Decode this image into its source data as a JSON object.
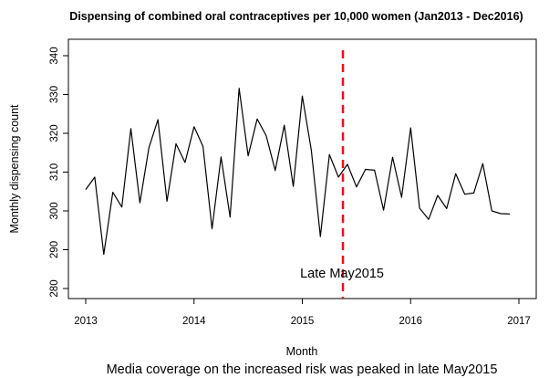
{
  "chart_data": {
    "type": "line",
    "title": "Dispensing of combined oral contraceptives per 10,000 women (Jan2013 - Dec2016)",
    "xlabel": "Month",
    "ylabel": "Monthly dispensing count",
    "caption": "Media coverage on the increased risk was peaked in late May2015",
    "xlim": [
      2013,
      2017
    ],
    "ylim": [
      280,
      340
    ],
    "x_ticks": [
      2013,
      2014,
      2015,
      2016,
      2017
    ],
    "y_ticks": [
      280,
      290,
      300,
      310,
      320,
      330,
      340
    ],
    "grid": false,
    "line_color": "#000000",
    "series": [
      {
        "x": [
          "2013-01",
          "2013-02",
          "2013-03",
          "2013-04",
          "2013-05",
          "2013-06",
          "2013-07",
          "2013-08",
          "2013-09",
          "2013-10",
          "2013-11",
          "2013-12",
          "2014-01",
          "2014-02",
          "2014-03",
          "2014-04",
          "2014-05",
          "2014-06",
          "2014-07",
          "2014-08",
          "2014-09",
          "2014-10",
          "2014-11",
          "2014-12",
          "2015-01",
          "2015-02",
          "2015-03",
          "2015-04",
          "2015-05",
          "2015-06",
          "2015-07",
          "2015-08",
          "2015-09",
          "2015-10",
          "2015-11",
          "2015-12",
          "2016-01",
          "2016-02",
          "2016-03",
          "2016-04",
          "2016-05",
          "2016-06",
          "2016-07",
          "2016-08",
          "2016-09",
          "2016-10",
          "2016-11",
          "2016-12"
        ],
        "values": [
          305.5,
          308.7,
          288.8,
          304.8,
          301.0,
          321.2,
          302.1,
          316.3,
          323.5,
          302.5,
          317.3,
          312.5,
          321.7,
          316.6,
          295.4,
          313.9,
          298.4,
          331.6,
          314.2,
          323.7,
          319.4,
          310.4,
          322.1,
          306.3,
          329.6,
          315.6,
          293.4,
          314.5,
          308.7,
          312.0,
          306.2,
          310.7,
          310.5,
          300.2,
          313.8,
          303.5,
          321.4,
          300.7,
          297.8,
          304.0,
          300.6,
          309.6,
          304.3,
          304.6,
          312.2,
          300.0,
          299.3,
          299.2
        ]
      }
    ],
    "annotations": [
      {
        "x": 2015.375,
        "label": "Late May2015",
        "line_style": "dashed",
        "line_color": "#ee1111"
      }
    ]
  }
}
